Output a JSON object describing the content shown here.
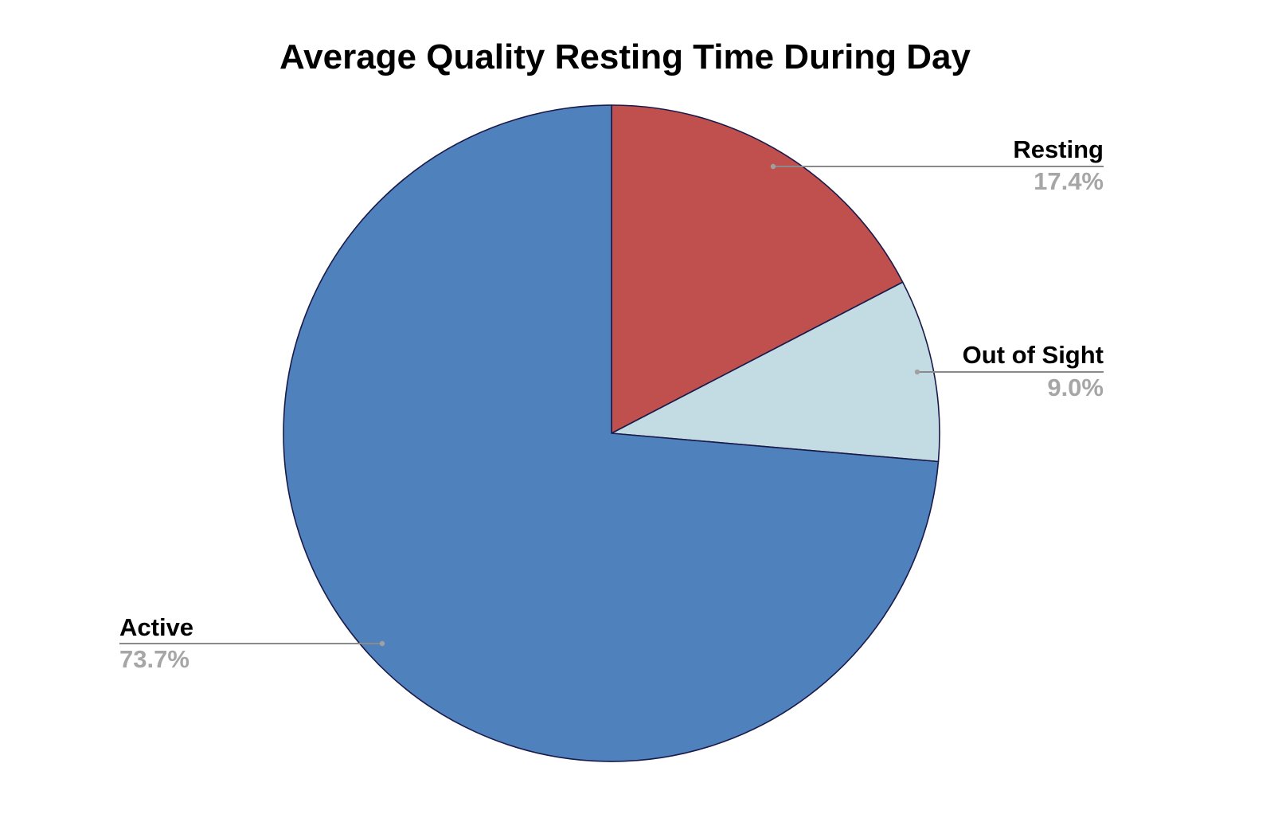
{
  "chart_data": {
    "type": "pie",
    "title": "Average Quality Resting Time During Day",
    "slices": [
      {
        "name": "Resting",
        "value": 17.4,
        "value_label": "17.4%",
        "color": "#c0504d"
      },
      {
        "name": "Out of Sight",
        "value": 9.0,
        "value_label": "9.0%",
        "color": "#c3dbe3"
      },
      {
        "name": "Active",
        "value": 73.7,
        "value_label": "73.7%",
        "color": "#4f81bd"
      }
    ],
    "start_angle": "12 o'clock",
    "direction": "clockwise",
    "slice_outline_color": "#1a1a4a",
    "label_color": "#000000",
    "value_color": "#a6a6a6",
    "leader_line_color": "#8a8a8a",
    "legend": "none"
  }
}
